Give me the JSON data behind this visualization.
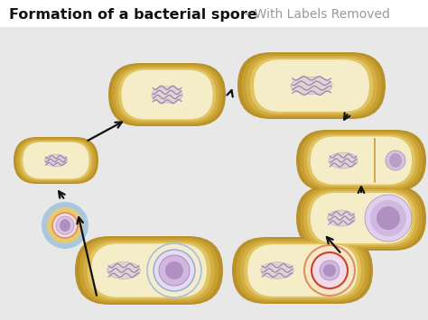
{
  "title_black": "Formation of a bacterial spore",
  "title_gray": " – With Labels Removed",
  "bg_color": "#e8e8e8",
  "white_bg": "#ffffff",
  "wall_colors": [
    "#b8912a",
    "#c8a030",
    "#d4ae44",
    "#e0c460",
    "#eedа80"
  ],
  "fill_color": "#f5ecc8",
  "dna_color": "#c8b8d8",
  "dna_stroke": "#9878b8",
  "spore_fill": "#d0b8e0",
  "spore_inner": "#b090c0",
  "spore_stroke": "#9878b8",
  "ring_blue_out": "#a8c8e8",
  "ring_blue_mid": "#88aad0",
  "ring_red_out": "#e09060",
  "ring_red_mid": "#cc4030",
  "ring_yellow": "#e8c870",
  "arrow_color": "#111111",
  "title_fontsize": 11.5,
  "subtitle_color": "#999999",
  "subtitle_fontsize": 10
}
